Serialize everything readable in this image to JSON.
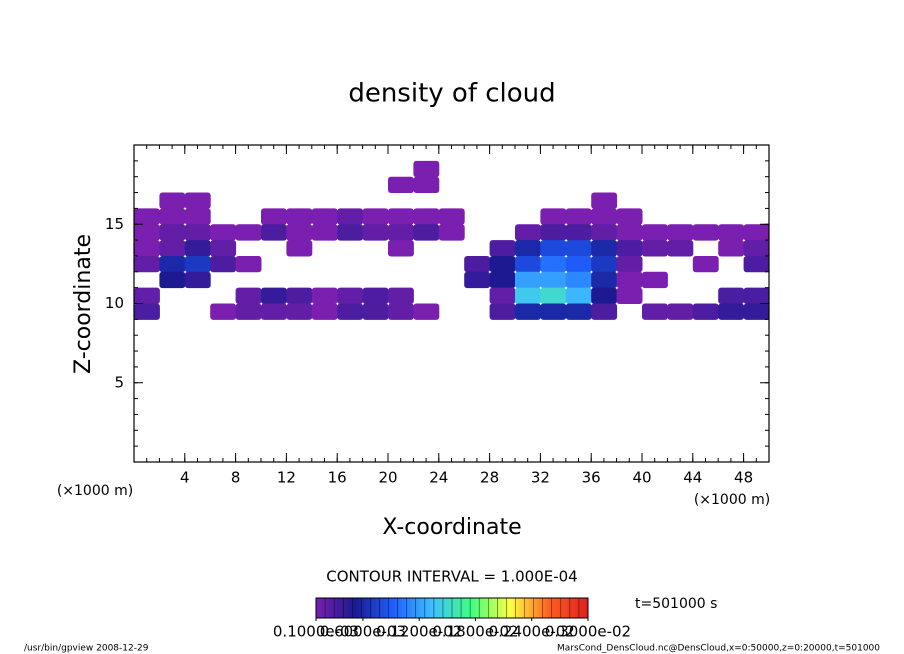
{
  "chart_data": {
    "type": "contour",
    "title": "density of cloud",
    "xlabel": "X-coordinate",
    "ylabel": "Z-coordinate",
    "xunit": "(×1000 m)",
    "yunit": "(×1000 m)",
    "xlim": [
      0,
      50
    ],
    "ylim": [
      0,
      20
    ],
    "xticks": [
      4,
      8,
      12,
      16,
      20,
      24,
      28,
      32,
      36,
      40,
      44,
      48
    ],
    "yticks": [
      5,
      10,
      15
    ],
    "x": [
      1,
      3,
      5,
      7,
      9,
      11,
      13,
      15,
      17,
      19,
      21,
      23,
      25,
      27,
      29,
      31,
      33,
      35,
      37,
      39,
      41,
      43,
      45,
      47,
      49
    ],
    "z": [
      18.5,
      17.5,
      16.5,
      15.5,
      14.5,
      13.5,
      12.5,
      11.5,
      10.5,
      9.5
    ],
    "values": [
      [
        null,
        null,
        null,
        null,
        null,
        null,
        null,
        null,
        null,
        null,
        null,
        0.0001,
        null,
        null,
        null,
        null,
        null,
        null,
        null,
        null,
        null,
        null,
        null,
        null,
        null
      ],
      [
        null,
        null,
        null,
        null,
        null,
        null,
        null,
        null,
        null,
        null,
        0.0001,
        0.0001,
        null,
        null,
        null,
        null,
        null,
        null,
        null,
        null,
        null,
        null,
        null,
        null,
        null
      ],
      [
        null,
        0.0001,
        0.0001,
        null,
        null,
        null,
        null,
        null,
        null,
        null,
        null,
        null,
        null,
        null,
        null,
        null,
        null,
        null,
        0.0001,
        null,
        null,
        null,
        null,
        null,
        null
      ],
      [
        0.0001,
        0.0001,
        0.0001,
        null,
        null,
        0.0001,
        0.0001,
        0.0001,
        0.0002,
        0.0001,
        0.0001,
        0.0001,
        0.0001,
        null,
        null,
        null,
        0.0001,
        0.0001,
        0.0001,
        0.0001,
        null,
        null,
        null,
        null,
        null
      ],
      [
        0.0001,
        0.0002,
        0.0002,
        0.0001,
        0.0001,
        0.0003,
        0.0001,
        0.0001,
        0.0003,
        0.0002,
        0.0002,
        0.0003,
        0.0001,
        null,
        null,
        0.0002,
        0.0003,
        0.0003,
        0.0002,
        0.0001,
        0.0001,
        0.0001,
        0.0001,
        0.0001,
        0.0001
      ],
      [
        0.0001,
        0.0002,
        0.0004,
        0.0002,
        null,
        null,
        0.0001,
        null,
        null,
        null,
        0.0001,
        null,
        null,
        null,
        0.0003,
        0.0006,
        0.0008,
        0.0008,
        0.0006,
        0.0003,
        0.0002,
        0.0002,
        null,
        0.0001,
        0.0002
      ],
      [
        0.0002,
        0.0006,
        0.0007,
        0.0003,
        0.0001,
        null,
        null,
        null,
        null,
        null,
        null,
        null,
        null,
        0.0003,
        0.0005,
        0.0008,
        0.001,
        0.0009,
        0.0007,
        0.0002,
        null,
        null,
        0.0001,
        null,
        0.0003
      ],
      [
        null,
        0.0005,
        0.0004,
        null,
        null,
        null,
        null,
        null,
        null,
        null,
        null,
        null,
        null,
        0.0004,
        0.0005,
        0.0012,
        0.0012,
        0.0011,
        0.0006,
        0.0001,
        0.0001,
        null,
        null,
        null,
        null
      ],
      [
        0.0002,
        null,
        null,
        null,
        0.0002,
        0.0004,
        0.0003,
        0.0001,
        0.0002,
        0.0003,
        0.0002,
        null,
        null,
        null,
        0.0002,
        0.0014,
        0.0015,
        0.0013,
        0.0005,
        0.0001,
        null,
        null,
        null,
        0.0003,
        0.0003
      ],
      [
        0.0003,
        null,
        null,
        0.0001,
        0.0002,
        0.0002,
        0.0002,
        0.0001,
        0.0003,
        0.0003,
        0.0002,
        0.0001,
        null,
        null,
        0.0003,
        0.0006,
        0.0006,
        0.0006,
        0.0003,
        null,
        0.0002,
        0.0002,
        0.0003,
        0.0004,
        0.0004
      ]
    ],
    "colormap": [
      "#7a1fb0",
      "#1a1a90",
      "#1e60ff",
      "#40c0ff",
      "#40ff80",
      "#ffff40",
      "#ff6020",
      "#e02020"
    ],
    "colorbar": {
      "range": [
        0.0001,
        0.003
      ],
      "ticks": [
        {
          "value": 0.0001,
          "label": "0.1000e-03"
        },
        {
          "value": 0.0006,
          "label": "0.6000e-03"
        },
        {
          "value": 0.0012,
          "label": "0.1200e-02"
        },
        {
          "value": 0.0018,
          "label": "0.1800e-02"
        },
        {
          "value": 0.0024,
          "label": "0.2400e-02"
        },
        {
          "value": 0.003,
          "label": "0.3000e-02"
        }
      ]
    },
    "contour_interval": "CONTOUR INTERVAL = 1.000E-04",
    "time": "t=501000 s",
    "footer_left": "/usr/bin/gpview  2008-12-29",
    "footer_right": "MarsCond_DensCloud.nc@DensCloud,x=0:50000,z=0:20000,t=501000"
  }
}
